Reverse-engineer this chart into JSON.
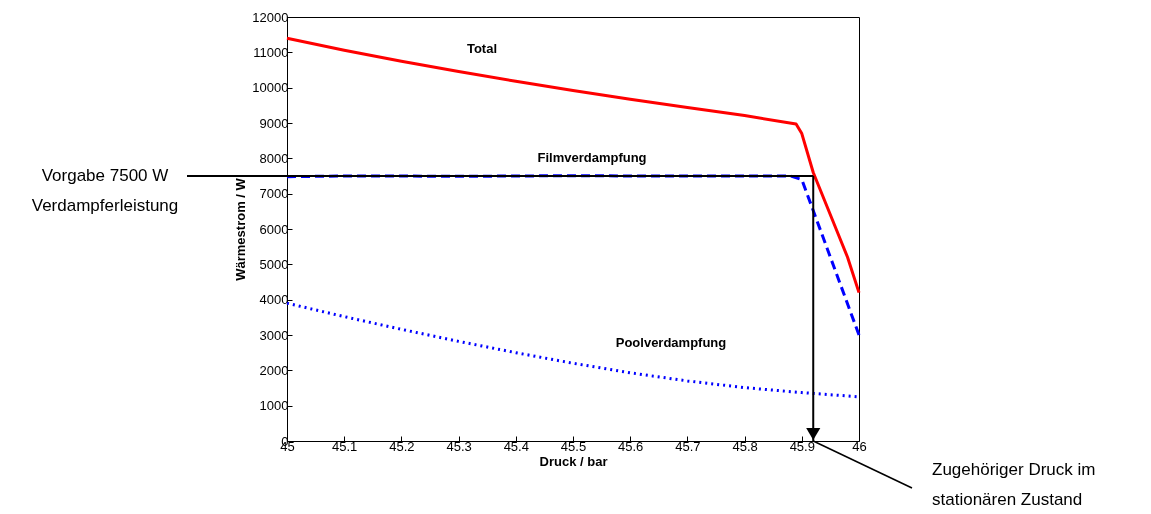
{
  "chart_data": {
    "type": "line",
    "xlabel": "Druck / bar",
    "ylabel": "Wärmestrom / W",
    "xlim": [
      45,
      46
    ],
    "xticks": [
      45,
      45.1,
      45.2,
      45.3,
      45.4,
      45.5,
      45.6,
      45.7,
      45.8,
      45.9,
      46
    ],
    "ylim": [
      0,
      12000
    ],
    "yticks": [
      0,
      1000,
      2000,
      3000,
      4000,
      5000,
      6000,
      7000,
      8000,
      9000,
      10000,
      11000,
      12000
    ],
    "grid": false,
    "series": [
      {
        "color": "#ff0000",
        "line_style": "solid",
        "x": [
          45,
          45.1,
          45.2,
          45.3,
          45.4,
          45.5,
          45.6,
          45.7,
          45.8,
          45.89,
          45.9,
          45.92,
          45.94,
          45.96,
          45.98,
          46
        ],
        "values": [
          11400,
          11060,
          10750,
          10460,
          10180,
          9920,
          9670,
          9440,
          9210,
          8970,
          8700,
          7600,
          6800,
          6000,
          5200,
          4200
        ]
      },
      {
        "color": "#0000ff",
        "line_style": "dashed",
        "x": [
          45,
          45.1,
          45.2,
          45.3,
          45.4,
          45.5,
          45.6,
          45.7,
          45.8,
          45.88,
          45.9,
          46
        ],
        "values": [
          7480,
          7500,
          7500,
          7490,
          7500,
          7510,
          7500,
          7500,
          7500,
          7500,
          7400,
          3000
        ]
      },
      {
        "color": "#0000ff",
        "line_style": "dotted",
        "x": [
          45,
          45.1,
          45.2,
          45.3,
          45.4,
          45.5,
          45.6,
          45.7,
          45.8,
          45.9,
          46
        ],
        "values": [
          3900,
          3520,
          3160,
          2820,
          2500,
          2200,
          1930,
          1700,
          1510,
          1370,
          1250
        ]
      }
    ],
    "annotations": [
      "Total",
      "Filmverdampfung",
      "Poolverdampfung"
    ],
    "ref_lines": [
      {
        "axis": "y",
        "value": 7500,
        "label": "Vorgabe 7500 W\nVerdampferleistung"
      },
      {
        "axis": "x",
        "value": 45.92,
        "label": "Zugehöriger Druck im\nstationären Zustand"
      }
    ]
  }
}
